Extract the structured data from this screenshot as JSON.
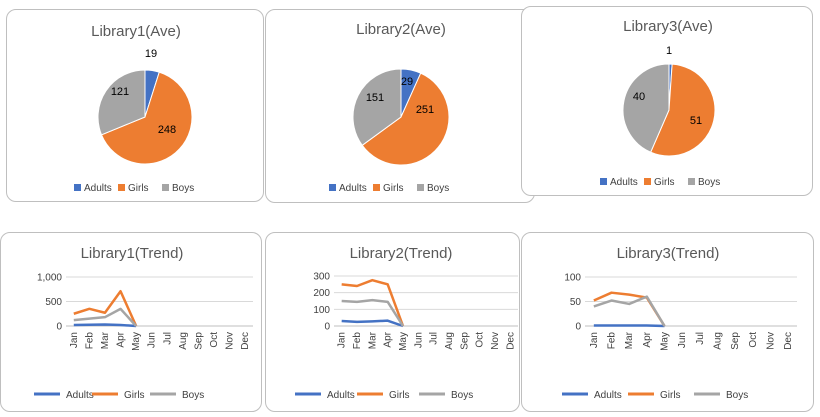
{
  "colors": {
    "Adults": "#4472c4",
    "Girls": "#ed7d31",
    "Boys": "#a5a5a5"
  },
  "chart_data": [
    {
      "type": "pie",
      "title": "Library1(Ave)",
      "categories": [
        "Adults",
        "Girls",
        "Boys"
      ],
      "values": [
        19,
        248,
        121
      ],
      "legend": "bottom"
    },
    {
      "type": "pie",
      "title": "Library2(Ave)",
      "categories": [
        "Adults",
        "Girls",
        "Boys"
      ],
      "values": [
        29,
        251,
        151
      ],
      "legend": "bottom"
    },
    {
      "type": "pie",
      "title": "Library3(Ave)",
      "categories": [
        "Adults",
        "Girls",
        "Boys"
      ],
      "values": [
        1,
        51,
        40
      ],
      "legend": "bottom"
    },
    {
      "type": "line",
      "title": "Library1(Trend)",
      "categories": [
        "Jan",
        "Feb",
        "Mar",
        "Apr",
        "May",
        "Jun",
        "Jul",
        "Aug",
        "Sep",
        "Oct",
        "Nov",
        "Dec"
      ],
      "series": [
        {
          "name": "Adults",
          "values": [
            20,
            25,
            30,
            20,
            0,
            0,
            0,
            0,
            0,
            0,
            0,
            0
          ]
        },
        {
          "name": "Girls",
          "values": [
            250,
            350,
            270,
            710,
            0,
            0,
            0,
            0,
            0,
            0,
            0,
            0
          ]
        },
        {
          "name": "Boys",
          "values": [
            120,
            150,
            180,
            350,
            0,
            0,
            0,
            0,
            0,
            0,
            0,
            0
          ]
        }
      ],
      "ylim": [
        0,
        1000
      ],
      "yticks": [
        "0",
        "500",
        "1,000"
      ],
      "grid": true,
      "legend": "bottom"
    },
    {
      "type": "line",
      "title": "Library2(Trend)",
      "categories": [
        "Jan",
        "Feb",
        "Mar",
        "Apr",
        "May",
        "Jun",
        "Jul",
        "Aug",
        "Sep",
        "Oct",
        "Nov",
        "Dec"
      ],
      "series": [
        {
          "name": "Adults",
          "values": [
            30,
            25,
            28,
            32,
            0,
            0,
            0,
            0,
            0,
            0,
            0,
            0
          ]
        },
        {
          "name": "Girls",
          "values": [
            250,
            240,
            275,
            250,
            0,
            0,
            0,
            0,
            0,
            0,
            0,
            0
          ]
        },
        {
          "name": "Boys",
          "values": [
            150,
            145,
            155,
            145,
            0,
            0,
            0,
            0,
            0,
            0,
            0,
            0
          ]
        }
      ],
      "ylim": [
        0,
        300
      ],
      "yticks": [
        "0",
        "100",
        "200",
        "300"
      ],
      "grid": true,
      "legend": "bottom"
    },
    {
      "type": "line",
      "title": "Library3(Trend)",
      "categories": [
        "Jan",
        "Feb",
        "Mar",
        "Apr",
        "May",
        "Jun",
        "Jul",
        "Aug",
        "Sep",
        "Oct",
        "Nov",
        "Dec"
      ],
      "series": [
        {
          "name": "Adults",
          "values": [
            1,
            1,
            1,
            1,
            0,
            0,
            0,
            0,
            0,
            0,
            0,
            0
          ]
        },
        {
          "name": "Girls",
          "values": [
            52,
            68,
            64,
            58,
            0,
            0,
            0,
            0,
            0,
            0,
            0,
            0
          ]
        },
        {
          "name": "Boys",
          "values": [
            40,
            52,
            45,
            60,
            0,
            0,
            0,
            0,
            0,
            0,
            0,
            0
          ]
        }
      ],
      "ylim": [
        0,
        100
      ],
      "yticks": [
        "0",
        "50",
        "100"
      ],
      "grid": true,
      "legend": "bottom"
    }
  ]
}
